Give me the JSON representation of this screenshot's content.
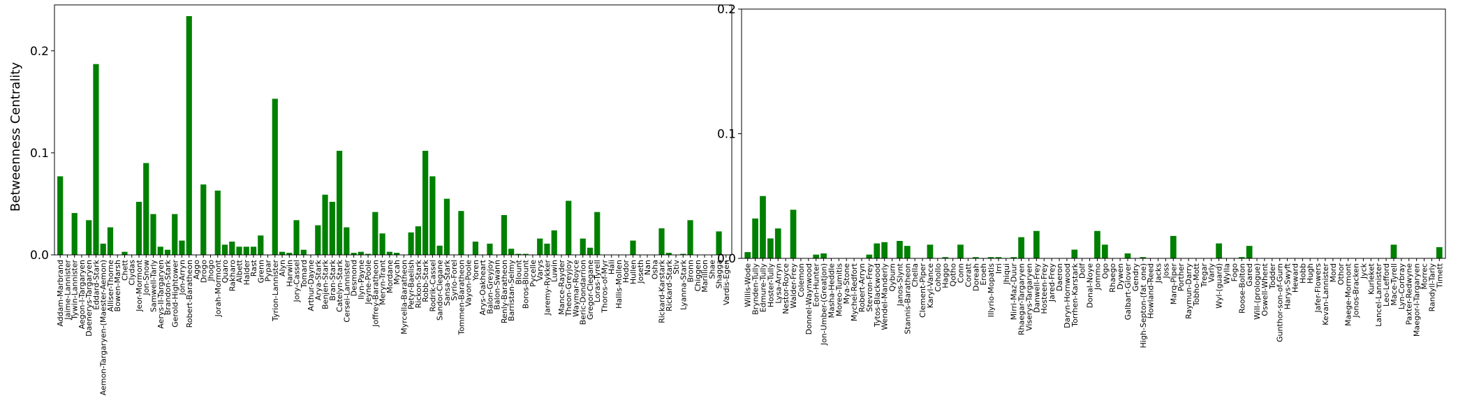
{
  "chart_data": [
    {
      "type": "bar",
      "ylabel": "Betweenness Centrality",
      "ylim": [
        0,
        0.245
      ],
      "yticks": [
        0.0,
        0.1,
        0.2
      ],
      "ytick_labels": [
        "0.0",
        "0.1",
        "0.2"
      ],
      "bar_color": "#008000",
      "categories": [
        "Addam-Marbrand",
        "Jaime-Lannister",
        "Tywin-Lannister",
        "Aegon-I-Targaryen",
        "Daenerys-Targaryen",
        "Eddard-Stark",
        "Aemon-Targaryen-(Maester-Aemon)",
        "Alliser-Thorne",
        "Bowen-Marsh",
        "Chett",
        "Clydas",
        "Jeor-Mormont",
        "Jon-Snow",
        "Samwell-Tarly",
        "Aerys-II-Targaryen",
        "Brandon-Stark",
        "Gerold-Hightower",
        "Jon-Arryn",
        "Robert-Baratheon",
        "Aggo",
        "Drogo",
        "Jhogo",
        "Jorah-Mormont",
        "Quaro",
        "Rakharo",
        "Albett",
        "Halder",
        "Rast",
        "Grenn",
        "Pypar",
        "Tyrion-Lannister",
        "Alyn",
        "Harwin",
        "Jory-Cassel",
        "Tomard",
        "Arthur-Dayne",
        "Arya-Stark",
        "Benjen-Stark",
        "Bran-Stark",
        "Catelyn-Stark",
        "Cersei-Lannister",
        "Desmond",
        "Ilyn-Payne",
        "Jeyne-Poole",
        "Joffrey-Baratheon",
        "Meryn-Trant",
        "Mordane",
        "Mycah",
        "Myrcella-Baratheon",
        "Petyr-Baelish",
        "Rickon-Stark",
        "Robb-Stark",
        "Rodrik-Cassel",
        "Sandor-Clegane",
        "Sansa-Stark",
        "Syrio-Forel",
        "Tommen-Baratheon",
        "Vayon-Poole",
        "Yoren",
        "Arys-Oakheart",
        "Balon-Greyjoy",
        "Balon-Swann",
        "Renly-Baratheon",
        "Barristan-Selmy",
        "Blount",
        "Boros-Blount",
        "Pycelle",
        "Varys",
        "Jaremy-Rykker",
        "Luwin",
        "Mance-Rayder",
        "Theon-Greyjoy",
        "Waymar-Royce",
        "Beric-Dondarrion",
        "Gregor-Clegane",
        "Loras-Tyrell",
        "Thoros-of-Myr",
        "Hali",
        "Hallis-Mollen",
        "Hodor",
        "Hullen",
        "Joseth",
        "Nan",
        "Osha",
        "Rickard-Karstark",
        "Rickard-Stark",
        "Stiv",
        "Lyanna-Stark",
        "Bronn",
        "Chiggen",
        "Marillion",
        "Shae",
        "Shagga",
        "Vardis-Egen"
      ],
      "values": [
        0.077,
        0,
        0.041,
        0,
        0.034,
        0.187,
        0.011,
        0.027,
        0,
        0.003,
        0,
        0.052,
        0.09,
        0.04,
        0.008,
        0.005,
        0.04,
        0.014,
        0.234,
        0,
        0.069,
        0,
        0.063,
        0.01,
        0.013,
        0.008,
        0.008,
        0.008,
        0.019,
        0,
        0.153,
        0.003,
        0.002,
        0.034,
        0.005,
        0,
        0.029,
        0.059,
        0.052,
        0.102,
        0.027,
        0.002,
        0.003,
        0.001,
        0.042,
        0.021,
        0.003,
        0.002,
        0,
        0.022,
        0.028,
        0.102,
        0.077,
        0.009,
        0.055,
        0,
        0.043,
        0,
        0.013,
        0,
        0.011,
        0,
        0.039,
        0.006,
        0.001,
        0.001,
        0,
        0.016,
        0.011,
        0.024,
        0,
        0.053,
        0,
        0.016,
        0.007,
        0.042,
        0,
        0,
        0,
        0,
        0.014,
        0,
        0,
        0,
        0.026,
        0.002,
        0,
        0.001,
        0.034,
        0,
        0,
        0,
        0.023,
        0
      ]
    },
    {
      "type": "bar",
      "ylabel": "",
      "ylim": [
        0,
        0.2
      ],
      "yticks": [
        0.0,
        0.1,
        0.2
      ],
      "ytick_labels": [
        "0.0",
        "0.1",
        "0.2"
      ],
      "bar_color": "#008000",
      "categories": [
        "Willis-Wode",
        "Brynden-Tully",
        "Edmure-Tully",
        "Hoster-Tully",
        "Lysa-Arryn",
        "Nestor-Royce",
        "Walder-Frey",
        "Colemon",
        "Donnel-Waynwood",
        "Eon-Hunter",
        "Jon-Umber-(Greatjon)",
        "Masha-Heddle",
        "Moreo-Tumitis",
        "Mya-Stone",
        "Mychel-Redfort",
        "Robert-Arryn",
        "Stevron-Frey",
        "Tytos-Blackwood",
        "Wendel-Manderly",
        "Qyburn",
        "Janos-Slynt",
        "Stannis-Baratheon",
        "Chella",
        "Clement-Piper",
        "Karyl-Vance",
        "Cohollo",
        "Haggo",
        "Qotho",
        "Conn",
        "Coratt",
        "Doreah",
        "Eroeh",
        "Illyrio-Mopatis",
        "Irri",
        "Jhiqui",
        "Mirri-Maz-Duur",
        "Rhaegar-Targaryen",
        "Viserys-Targaryen",
        "Danwell-Frey",
        "Hosteen-Frey",
        "Jared-Frey",
        "Daeron",
        "Daryn-Hornwood",
        "Torrhen-Karstark",
        "Dolf",
        "Donal-Noye",
        "Jommo",
        "Ogo",
        "Rhaego",
        "Dywen",
        "Galbart-Glover",
        "Gendry",
        "High-Septon-(fat_one)",
        "Howland-Reed",
        "Jacks",
        "Joss",
        "Marq-Piper",
        "Porther",
        "Raymun-Darry",
        "Tobho-Mott",
        "Tregar",
        "Varly",
        "Wyl-(guard)",
        "Wylla",
        "Fogo",
        "Roose-Bolton",
        "Gared",
        "Will-(prologue)",
        "Oswell-Whent",
        "Todder",
        "Gunthor-son-of-Gurn",
        "Harys-Swyft",
        "Heward",
        "Hobb",
        "Hugh",
        "Jafer-Flowers",
        "Kevan-Lannister",
        "Mord",
        "Othor",
        "Maege-Mormont",
        "Jonos-Bracken",
        "Jyck",
        "Kurleket",
        "Lancel-Lannister",
        "Leo-Lefford",
        "Mace-Tyrell",
        "Lyn-Corbray",
        "Paxter-Redwyne",
        "Maegor-I-Targaryen",
        "Morrec",
        "Randyll-Tarly",
        "Timett"
      ],
      "values": [
        0.005,
        0.032,
        0.05,
        0.016,
        0.024,
        0,
        0.039,
        0,
        0,
        0.003,
        0.004,
        0,
        0,
        0,
        0,
        0,
        0.003,
        0.012,
        0.013,
        0,
        0.014,
        0.01,
        0,
        0,
        0.011,
        0,
        0.001,
        0,
        0.011,
        0,
        0.001,
        0,
        0.001,
        0.001,
        0,
        0.001,
        0.017,
        0,
        0.022,
        0,
        0,
        0,
        0,
        0.007,
        0,
        0,
        0.022,
        0.011,
        0,
        0,
        0.004,
        0,
        0.001,
        0,
        0,
        0,
        0.018,
        0,
        0,
        0,
        0,
        0,
        0.012,
        0,
        0,
        0.001,
        0.01,
        0,
        0,
        0,
        0,
        0,
        0,
        0,
        0,
        0,
        0,
        0,
        0,
        0,
        0,
        0,
        0,
        0,
        0,
        0.011,
        0,
        0,
        0,
        0,
        0,
        0.009
      ]
    }
  ]
}
